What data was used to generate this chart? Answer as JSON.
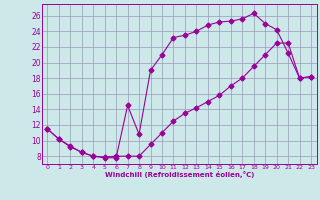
{
  "xlabel": "Windchill (Refroidissement éolien,°C)",
  "bg_color": "#cce8e8",
  "grid_color": "#9999bb",
  "line_color": "#990099",
  "xlim": [
    -0.5,
    23.5
  ],
  "ylim": [
    7.0,
    27.5
  ],
  "xticks": [
    0,
    1,
    2,
    3,
    4,
    5,
    6,
    7,
    8,
    9,
    10,
    11,
    12,
    13,
    14,
    15,
    16,
    17,
    18,
    19,
    20,
    21,
    22,
    23
  ],
  "yticks": [
    8,
    10,
    12,
    14,
    16,
    18,
    20,
    22,
    24,
    26
  ],
  "curve1_x": [
    0,
    1,
    2,
    3,
    4,
    5,
    6,
    7,
    8,
    9,
    10,
    11,
    12,
    13,
    14,
    15,
    16,
    17,
    18,
    19,
    20,
    21,
    22,
    23
  ],
  "curve1_y": [
    11.5,
    10.2,
    9.2,
    8.5,
    8.0,
    7.8,
    7.8,
    14.5,
    10.8,
    19.0,
    21.0,
    23.2,
    23.5,
    24.0,
    24.8,
    25.2,
    25.3,
    25.6,
    26.3,
    25.0,
    24.2,
    21.2,
    18.0,
    18.2
  ],
  "curve2_x": [
    0,
    1,
    2,
    3,
    4,
    5,
    6,
    7,
    8,
    9,
    10,
    11,
    12,
    13,
    14,
    15,
    16,
    17,
    18,
    19,
    20,
    21,
    22,
    23
  ],
  "curve2_y": [
    11.5,
    10.2,
    9.3,
    8.5,
    8.0,
    7.9,
    8.0,
    8.0,
    8.0,
    9.5,
    11.0,
    12.5,
    13.5,
    14.2,
    15.0,
    15.8,
    17.0,
    18.0,
    19.5,
    21.0,
    22.5,
    22.5,
    18.0,
    18.2
  ],
  "marker": "D",
  "markersize": 2.5,
  "linewidth": 0.8
}
